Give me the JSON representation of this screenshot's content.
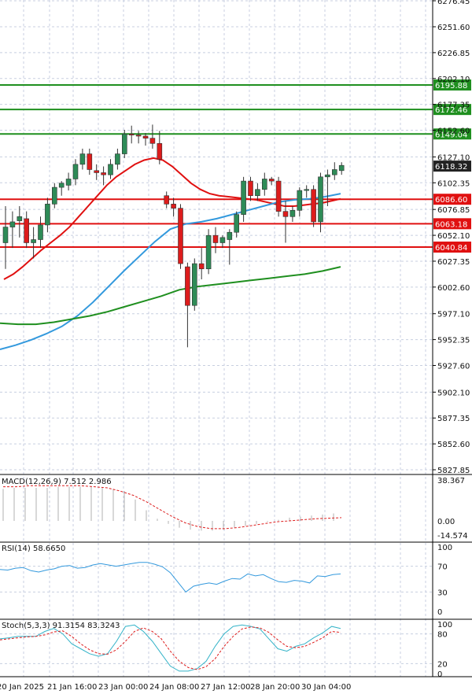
{
  "colors": {
    "up_candle": "#2e8b57",
    "down_candle": "#dd1c1c",
    "grid": "#c8cfe0",
    "level_green": "#1f8f1f",
    "level_red": "#e01010",
    "ma_red": "#e01010",
    "ma_blue": "#3399dd",
    "ma_green": "#1f8f1f",
    "last_price_box": "#222222"
  },
  "price_axis": {
    "ticks": [
      "6276.45",
      "6251.60",
      "6226.85",
      "6202.10",
      "6177.35",
      "6152.60",
      "6127.10",
      "6102.35",
      "6076.85",
      "6052.10",
      "6027.35",
      "6002.60",
      "5977.10",
      "5952.35",
      "5927.60",
      "5902.10",
      "5877.35",
      "5852.60",
      "5827.85"
    ],
    "last_price": "6118.32"
  },
  "time_axis": {
    "labels": [
      "20 Jan 2025",
      "21 Jan 16:00",
      "23 Jan 00:00",
      "24 Jan 08:00",
      "27 Jan 12:00",
      "28 Jan 20:00",
      "30 Jan 04:00"
    ]
  },
  "panes": {
    "macd": {
      "title": "MACD(12,26,9) 7.512 2.986",
      "ticks": [
        "38.367",
        "0.00",
        "-14.574"
      ]
    },
    "rsi": {
      "title": "RSI(14) 58.6650",
      "ticks": [
        "100",
        "70",
        "30",
        "0"
      ]
    },
    "stoch": {
      "title": "Stoch(5,3,3) 91.3154 83.3243",
      "ticks": [
        "100",
        "80",
        "20",
        "0"
      ]
    }
  },
  "chart_data": [
    {
      "type": "candlestick",
      "title": "",
      "ylim": [
        5827.85,
        6276.45
      ],
      "levels": [
        {
          "value": 6195.88,
          "label": "6195.88",
          "color": "green"
        },
        {
          "value": 6172.46,
          "label": "6172.46",
          "color": "green"
        },
        {
          "value": 6149.04,
          "label": "6149.04",
          "color": "green"
        },
        {
          "value": 6086.6,
          "label": "6086.60",
          "color": "red"
        },
        {
          "value": 6063.18,
          "label": "6063.18",
          "color": "red"
        },
        {
          "value": 6040.84,
          "label": "6040.84",
          "color": "red"
        }
      ],
      "candles": [
        {
          "o": 6045,
          "h": 6080,
          "l": 6020,
          "c": 6060
        },
        {
          "o": 6060,
          "h": 6075,
          "l": 6040,
          "c": 6065
        },
        {
          "o": 6066,
          "h": 6080,
          "l": 6050,
          "c": 6070
        },
        {
          "o": 6068,
          "h": 6075,
          "l": 6040,
          "c": 6045
        },
        {
          "o": 6045,
          "h": 6060,
          "l": 6030,
          "c": 6048
        },
        {
          "o": 6048,
          "h": 6070,
          "l": 6040,
          "c": 6062
        },
        {
          "o": 6062,
          "h": 6088,
          "l": 6055,
          "c": 6082
        },
        {
          "o": 6082,
          "h": 6102,
          "l": 6078,
          "c": 6098
        },
        {
          "o": 6098,
          "h": 6104,
          "l": 6090,
          "c": 6102
        },
        {
          "o": 6100,
          "h": 6112,
          "l": 6095,
          "c": 6106
        },
        {
          "o": 6106,
          "h": 6125,
          "l": 6100,
          "c": 6120
        },
        {
          "o": 6120,
          "h": 6135,
          "l": 6115,
          "c": 6130
        },
        {
          "o": 6130,
          "h": 6135,
          "l": 6110,
          "c": 6115
        },
        {
          "o": 6114,
          "h": 6120,
          "l": 6105,
          "c": 6112
        },
        {
          "o": 6112,
          "h": 6118,
          "l": 6100,
          "c": 6110
        },
        {
          "o": 6110,
          "h": 6125,
          "l": 6106,
          "c": 6120
        },
        {
          "o": 6120,
          "h": 6135,
          "l": 6115,
          "c": 6130
        },
        {
          "o": 6130,
          "h": 6153,
          "l": 6126,
          "c": 6149
        },
        {
          "o": 6149,
          "h": 6157,
          "l": 6140,
          "c": 6148
        },
        {
          "o": 6148,
          "h": 6152,
          "l": 6140,
          "c": 6147
        },
        {
          "o": 6147,
          "h": 6150,
          "l": 6138,
          "c": 6145
        },
        {
          "o": 6145,
          "h": 6158,
          "l": 6135,
          "c": 6140
        },
        {
          "o": 6140,
          "h": 6152,
          "l": 6120,
          "c": 6125
        },
        {
          "o": 6090,
          "h": 6094,
          "l": 6078,
          "c": 6082
        },
        {
          "o": 6082,
          "h": 6088,
          "l": 6070,
          "c": 6078
        },
        {
          "o": 6078,
          "h": 6082,
          "l": 6020,
          "c": 6025
        },
        {
          "o": 6022,
          "h": 6026,
          "l": 5945,
          "c": 5985
        },
        {
          "o": 5985,
          "h": 6030,
          "l": 5980,
          "c": 6025
        },
        {
          "o": 6025,
          "h": 6040,
          "l": 6010,
          "c": 6020
        },
        {
          "o": 6020,
          "h": 6058,
          "l": 6015,
          "c": 6052
        },
        {
          "o": 6052,
          "h": 6060,
          "l": 6035,
          "c": 6045
        },
        {
          "o": 6045,
          "h": 6052,
          "l": 6040,
          "c": 6050
        },
        {
          "o": 6048,
          "h": 6058,
          "l": 6024,
          "c": 6055
        },
        {
          "o": 6055,
          "h": 6075,
          "l": 6050,
          "c": 6072
        },
        {
          "o": 6072,
          "h": 6108,
          "l": 6065,
          "c": 6104
        },
        {
          "o": 6104,
          "h": 6108,
          "l": 6085,
          "c": 6090
        },
        {
          "o": 6090,
          "h": 6102,
          "l": 6085,
          "c": 6096
        },
        {
          "o": 6096,
          "h": 6112,
          "l": 6090,
          "c": 6106
        },
        {
          "o": 6106,
          "h": 6108,
          "l": 6100,
          "c": 6104
        },
        {
          "o": 6104,
          "h": 6108,
          "l": 6070,
          "c": 6075
        },
        {
          "o": 6075,
          "h": 6085,
          "l": 6045,
          "c": 6070
        },
        {
          "o": 6070,
          "h": 6080,
          "l": 6065,
          "c": 6076
        },
        {
          "o": 6076,
          "h": 6098,
          "l": 6070,
          "c": 6095
        },
        {
          "o": 6095,
          "h": 6100,
          "l": 6088,
          "c": 6096
        },
        {
          "o": 6096,
          "h": 6100,
          "l": 6060,
          "c": 6065
        },
        {
          "o": 6065,
          "h": 6112,
          "l": 6055,
          "c": 6108
        },
        {
          "o": 6108,
          "h": 6115,
          "l": 6080,
          "c": 6110
        },
        {
          "o": 6110,
          "h": 6122,
          "l": 6105,
          "c": 6115
        },
        {
          "o": 6114,
          "h": 6122,
          "l": 6110,
          "c": 6119
        }
      ],
      "series": [
        {
          "values": [
            6010,
            6015,
            6022,
            6030,
            6038,
            6045,
            6052,
            6060,
            6070,
            6080,
            6090,
            6100,
            6108,
            6114,
            6120,
            6124,
            6126,
            6124,
            6118,
            6110,
            6102,
            6096,
            6092,
            6090,
            6089,
            6088,
            6087,
            6086,
            6084,
            6082,
            6080,
            6080,
            6081,
            6082,
            6083,
            6085,
            6087
          ]
        },
        {
          "values": [
            5943,
            5947,
            5952,
            5958,
            5965,
            5975,
            5988,
            6003,
            6018,
            6032,
            6046,
            6058,
            6063,
            6065,
            6068,
            6072,
            6076,
            6080,
            6084,
            6086,
            6087,
            6089,
            6092
          ]
        },
        {
          "values": [
            5968,
            5967,
            5967,
            5969,
            5972,
            5975,
            5979,
            5984,
            5989,
            5994,
            6000,
            6003,
            6005,
            6007,
            6009,
            6011,
            6013,
            6015,
            6018,
            6022
          ]
        }
      ]
    },
    {
      "type": "bar",
      "title": "MACD(12,26,9)",
      "values": [
        30,
        31,
        31,
        31,
        31,
        32,
        32,
        32,
        32,
        31,
        30,
        28,
        20,
        10,
        2,
        -3,
        -7,
        -9,
        -10,
        -10,
        -9,
        -7,
        -5,
        -3,
        -1,
        1,
        3,
        4,
        5,
        6,
        7
      ],
      "signal": [
        32,
        32,
        33,
        33,
        33,
        33,
        33,
        32,
        31,
        28,
        24,
        18,
        11,
        4,
        -2,
        -6,
        -8,
        -8,
        -7,
        -5,
        -3,
        -1,
        0,
        1,
        2,
        2.5,
        3
      ]
    },
    {
      "type": "line",
      "title": "RSI(14)",
      "ylim": [
        0,
        100
      ],
      "values": [
        65,
        64,
        67,
        68,
        63,
        61,
        64,
        66,
        70,
        71,
        67,
        68,
        72,
        74,
        72,
        70,
        72,
        74,
        76,
        76,
        73,
        69,
        60,
        45,
        30,
        39,
        42,
        44,
        42,
        47,
        51,
        50,
        58,
        55,
        57,
        51,
        46,
        45,
        48,
        47,
        44,
        55,
        54,
        57,
        58
      ]
    },
    {
      "type": "line",
      "title": "Stoch(5,3,3)",
      "ylim": [
        0,
        100
      ],
      "values": [
        70,
        72,
        75,
        75,
        75,
        85,
        91,
        80,
        60,
        50,
        40,
        35,
        40,
        65,
        95,
        98,
        85,
        65,
        40,
        15,
        5,
        5,
        10,
        25,
        55,
        80,
        95,
        98,
        95,
        90,
        70,
        50,
        45,
        55,
        60,
        72,
        82,
        95,
        91
      ],
      "signal": [
        68,
        70,
        72,
        74,
        75,
        78,
        84,
        86,
        75,
        60,
        48,
        40,
        39,
        48,
        65,
        85,
        92,
        85,
        70,
        45,
        25,
        12,
        8,
        14,
        30,
        55,
        75,
        90,
        94,
        92,
        83,
        68,
        55,
        52,
        55,
        63,
        72,
        85,
        83
      ]
    }
  ]
}
